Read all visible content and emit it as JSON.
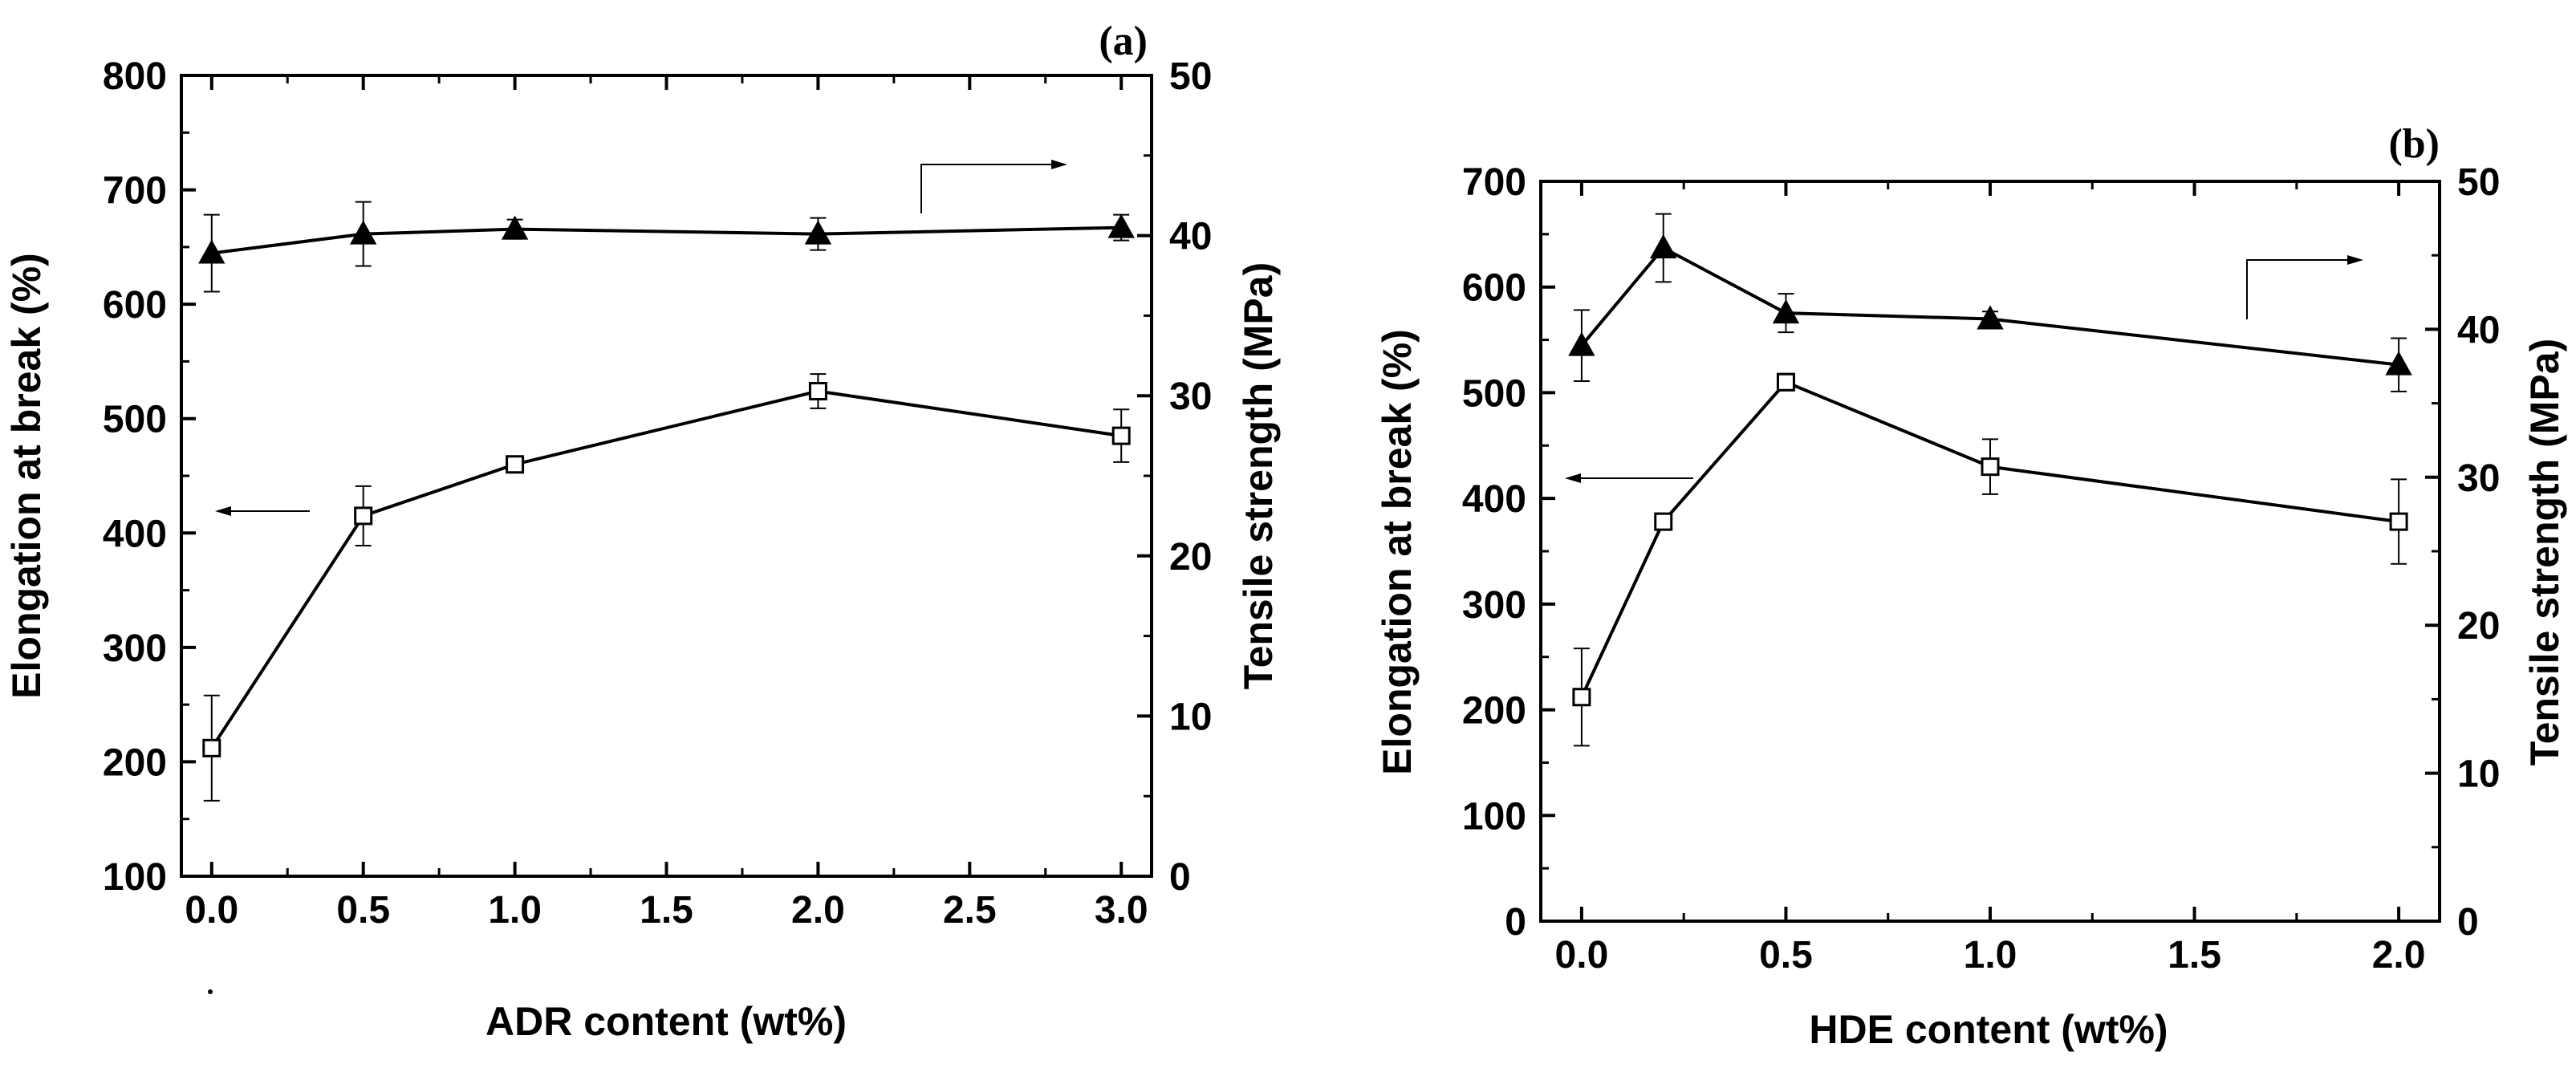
{
  "chart_data": [
    {
      "type": "line",
      "panel_label": "(a)",
      "xlabel": "ADR content (wt%)",
      "ylabel_left": "Elongation at break (%)",
      "ylabel_right": "Tensile strength (MPa)",
      "xlim": [
        -0.1,
        3.1
      ],
      "ylim_left": [
        100,
        800
      ],
      "ylim_right": [
        0,
        50
      ],
      "xticks": [
        0.0,
        0.5,
        1.0,
        1.5,
        2.0,
        2.5,
        3.0
      ],
      "xtick_labels": [
        "0.0",
        "0.5",
        "1.0",
        "1.5",
        "2.0",
        "2.5",
        "3.0"
      ],
      "yticks_left": [
        100,
        200,
        300,
        400,
        500,
        600,
        700,
        800
      ],
      "ytick_labels_left": [
        "100",
        "200",
        "300",
        "400",
        "500",
        "600",
        "700",
        "800"
      ],
      "yticks_right": [
        0,
        10,
        20,
        30,
        40,
        50
      ],
      "ytick_labels_right": [
        "0",
        "10",
        "20",
        "30",
        "40",
        "50"
      ],
      "series": [
        {
          "name": "Elongation at break",
          "axis": "left",
          "marker": "open-square",
          "x": [
            0.0,
            0.5,
            1.0,
            2.0,
            3.0
          ],
          "values": [
            212,
            415,
            460,
            524,
            485
          ],
          "errors": [
            46,
            26,
            7,
            15,
            23
          ]
        },
        {
          "name": "Tensile strength",
          "axis": "right",
          "marker": "filled-triangle",
          "x": [
            0.0,
            0.5,
            1.0,
            2.0,
            3.0
          ],
          "values": [
            38.9,
            40.1,
            40.4,
            40.1,
            40.5
          ],
          "errors": [
            2.4,
            2.0,
            0.6,
            1.0,
            0.8
          ]
        }
      ],
      "annotations": [
        {
          "type": "arrow",
          "points_to": "left axis",
          "near": "elongation series"
        },
        {
          "type": "arrow",
          "points_to": "right axis",
          "near": "tensile series"
        }
      ]
    },
    {
      "type": "line",
      "panel_label": "(b)",
      "xlabel": "HDE content (wt%)",
      "ylabel_left": "Elongation at break (%)",
      "ylabel_right": "Tensile strength (MPa)",
      "xlim": [
        -0.1,
        2.1
      ],
      "ylim_left": [
        0,
        700
      ],
      "ylim_right": [
        0,
        50
      ],
      "xticks": [
        0.0,
        0.5,
        1.0,
        1.5,
        2.0
      ],
      "xtick_labels": [
        "0.0",
        "0.5",
        "1.0",
        "1.5",
        "2.0"
      ],
      "yticks_left": [
        0,
        100,
        200,
        300,
        400,
        500,
        600,
        700
      ],
      "ytick_labels_left": [
        "0",
        "100",
        "200",
        "300",
        "400",
        "500",
        "600",
        "700"
      ],
      "yticks_right": [
        0,
        10,
        20,
        30,
        40,
        50
      ],
      "ytick_labels_right": [
        "0",
        "10",
        "20",
        "30",
        "40",
        "50"
      ],
      "series": [
        {
          "name": "Elongation at break",
          "axis": "left",
          "marker": "open-square",
          "x": [
            0.0,
            0.2,
            0.5,
            1.0,
            2.0
          ],
          "values": [
            212,
            378,
            510,
            430,
            378
          ],
          "errors": [
            46,
            5,
            8,
            26,
            40
          ]
        },
        {
          "name": "Tensile strength",
          "axis": "right",
          "marker": "filled-triangle",
          "x": [
            0.0,
            0.2,
            0.5,
            1.0,
            2.0
          ],
          "values": [
            38.9,
            45.5,
            41.1,
            40.7,
            37.6
          ],
          "errors": [
            2.4,
            2.3,
            1.3,
            0.5,
            1.8
          ]
        }
      ],
      "annotations": [
        {
          "type": "arrow",
          "points_to": "left axis",
          "near": "elongation series"
        },
        {
          "type": "arrow",
          "points_to": "right axis",
          "near": "tensile series"
        }
      ]
    }
  ]
}
